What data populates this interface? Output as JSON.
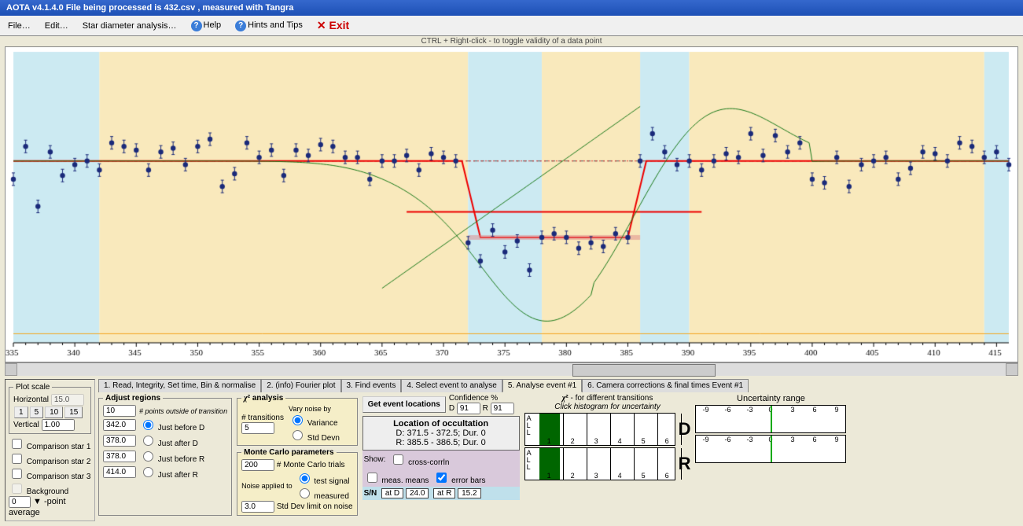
{
  "title": "AOTA v4.1.4.0   File being processed is  432.csv ,  measured with Tangra",
  "menu": {
    "file": "File…",
    "edit": "Edit…",
    "star": "Star diameter analysis…",
    "help": "Help",
    "hints": "Hints and Tips",
    "exit": "Exit"
  },
  "hint": "CTRL + Right-click   -   to toggle validity of a data point",
  "plotScale": {
    "legend": "Plot scale",
    "horizontal": "Horizontal",
    "horzVal": "15.0",
    "vertical": "Vertical",
    "vertVal": "1.00",
    "btns": [
      "1",
      "5",
      "10",
      "15"
    ],
    "comp": [
      "Comparison star 1",
      "Comparison star 2",
      "Comparison star 3",
      "Background"
    ],
    "ptAvg": "-point average",
    "ptAvgVal": "0"
  },
  "tabs": [
    "1. Read, Integrity, Set time, Bin & normalise",
    "2. (info) Fourier plot",
    "3. Find events",
    "4. Select event to analyse",
    "5. Analyse event #1",
    "6. Camera corrections & final times Event #1"
  ],
  "activeTab": 4,
  "adjust": {
    "legend": "Adjust regions",
    "nOutside": "10",
    "nOutsideLbl": "# points outside of transition",
    "rows": [
      {
        "v": "342.0",
        "l": "Just before D",
        "sel": true
      },
      {
        "v": "378.0",
        "l": "Just after D"
      },
      {
        "v": "378.0",
        "l": "Just before R"
      },
      {
        "v": "414.0",
        "l": "Just after R"
      }
    ]
  },
  "chi2": {
    "legend": "χ² analysis",
    "trans": "# transitions",
    "transVal": "5",
    "varyLbl": "Vary noise by",
    "opt1": "Variance",
    "opt2": "Std Devn"
  },
  "mc": {
    "legend": "Monte Carlo parameters",
    "trials": "200",
    "trialsLbl": "# Monte Carlo trials",
    "noiseLbl": "Noise applied to",
    "opt1": "test signal",
    "opt2": "measured",
    "limit": "3.0",
    "limitLbl": "Std Dev limit on noise"
  },
  "getEvt": {
    "btn": "Get event locations",
    "conf": "Confidence  %",
    "D": "91",
    "R": "91",
    "locTitle": "Location of occultation",
    "locD": "D: 371.5 - 372.5; Dur. 0",
    "locR": "R: 385.5 - 386.5; Dur. 0",
    "show": "Show:",
    "cc": "cross-corrln",
    "mm": "meas. means",
    "eb": "error bars",
    "sn": "S/N",
    "atD": "at D",
    "atDV": "24.0",
    "atR": "at R",
    "atRV": "15.2"
  },
  "hist": {
    "title": "χ² -  for different transitions",
    "sub": "Click histogram for uncertainty",
    "xlabels": [
      "1",
      "2",
      "3",
      "4",
      "5",
      "6"
    ]
  },
  "unc": {
    "title": "Uncertainty range",
    "ticks": [
      "-9",
      "-6",
      "-3",
      "0",
      "3",
      "6",
      "9"
    ]
  },
  "chart": {
    "xmin": 335,
    "xmax": 416,
    "ymin": 0,
    "ymax": 1.6,
    "baseline": 1.0,
    "dip": 0.6,
    "xticks": [
      335,
      340,
      345,
      350,
      355,
      360,
      365,
      370,
      375,
      380,
      385,
      390,
      395,
      400,
      405,
      410,
      415
    ],
    "bands": [
      [
        335,
        342,
        "#cceaf2"
      ],
      [
        342,
        372,
        "#f9e9bc"
      ],
      [
        372,
        378,
        "#cceaf2"
      ],
      [
        378,
        386,
        "#f9e9bc"
      ],
      [
        386,
        390,
        "#cceaf2"
      ],
      [
        390,
        414,
        "#f9e9bc"
      ],
      [
        414,
        416,
        "#cceaf2"
      ]
    ],
    "points": [
      [
        335,
        0.9
      ],
      [
        336,
        1.08
      ],
      [
        337,
        0.75
      ],
      [
        338,
        1.05
      ],
      [
        339,
        0.92
      ],
      [
        340,
        0.98
      ],
      [
        341,
        1.0
      ],
      [
        342,
        0.95
      ],
      [
        343,
        1.1
      ],
      [
        344,
        1.08
      ],
      [
        345,
        1.06
      ],
      [
        346,
        0.95
      ],
      [
        347,
        1.05
      ],
      [
        348,
        1.07
      ],
      [
        349,
        0.98
      ],
      [
        350,
        1.08
      ],
      [
        351,
        1.12
      ],
      [
        352,
        0.86
      ],
      [
        353,
        0.93
      ],
      [
        354,
        1.1
      ],
      [
        355,
        1.02
      ],
      [
        356,
        1.06
      ],
      [
        357,
        0.92
      ],
      [
        358,
        1.06
      ],
      [
        359,
        1.03
      ],
      [
        360,
        1.09
      ],
      [
        361,
        1.08
      ],
      [
        362,
        1.02
      ],
      [
        363,
        1.02
      ],
      [
        364,
        0.9
      ],
      [
        365,
        1.0
      ],
      [
        366,
        1.0
      ],
      [
        367,
        1.03
      ],
      [
        368,
        0.95
      ],
      [
        369,
        1.04
      ],
      [
        370,
        1.02
      ],
      [
        371,
        1.0
      ],
      [
        372,
        0.55
      ],
      [
        373,
        0.45
      ],
      [
        374,
        0.62
      ],
      [
        375,
        0.5
      ],
      [
        376,
        0.56
      ],
      [
        377,
        0.4
      ],
      [
        378,
        0.58
      ],
      [
        379,
        0.6
      ],
      [
        380,
        0.58
      ],
      [
        381,
        0.52
      ],
      [
        382,
        0.55
      ],
      [
        383,
        0.53
      ],
      [
        384,
        0.6
      ],
      [
        385,
        0.58
      ],
      [
        386,
        1.0
      ],
      [
        387,
        1.15
      ],
      [
        388,
        1.05
      ],
      [
        389,
        0.98
      ],
      [
        390,
        1.0
      ],
      [
        391,
        0.95
      ],
      [
        392,
        1.0
      ],
      [
        393,
        1.04
      ],
      [
        394,
        1.02
      ],
      [
        395,
        1.15
      ],
      [
        396,
        1.03
      ],
      [
        397,
        1.14
      ],
      [
        398,
        1.05
      ],
      [
        399,
        1.1
      ],
      [
        400,
        0.9
      ],
      [
        401,
        0.88
      ],
      [
        402,
        1.02
      ],
      [
        403,
        0.86
      ],
      [
        404,
        0.98
      ],
      [
        405,
        1.0
      ],
      [
        406,
        1.02
      ],
      [
        407,
        0.9
      ],
      [
        408,
        0.96
      ],
      [
        409,
        1.05
      ],
      [
        410,
        1.04
      ],
      [
        411,
        1.0
      ],
      [
        412,
        1.1
      ],
      [
        413,
        1.08
      ],
      [
        414,
        1.02
      ],
      [
        415,
        1.05
      ],
      [
        416,
        0.98
      ]
    ]
  }
}
